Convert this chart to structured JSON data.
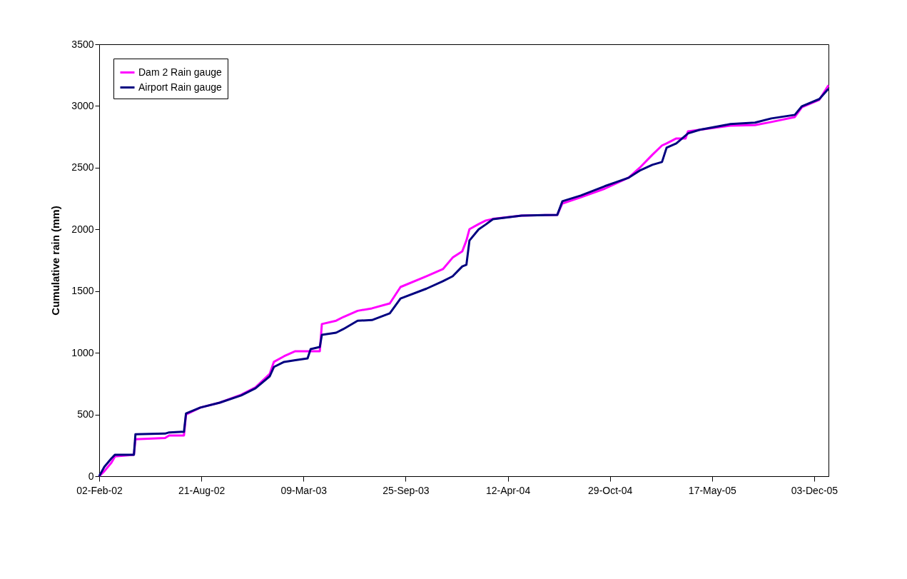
{
  "chart_data": {
    "type": "line",
    "ylabel": "Cumulative rain (mm)",
    "x": [
      "2002-02-02",
      "2002-02-12",
      "2002-02-26",
      "2002-03-05",
      "2002-04-11",
      "2002-04-14",
      "2002-06-11",
      "2002-06-19",
      "2002-07-18",
      "2002-07-22",
      "2002-08-19",
      "2002-09-26",
      "2002-11-07",
      "2002-12-05",
      "2003-01-02",
      "2003-01-10",
      "2003-01-30",
      "2003-02-21",
      "2003-03-17",
      "2003-03-23",
      "2003-04-10",
      "2003-04-14",
      "2003-05-12",
      "2003-05-26",
      "2003-06-23",
      "2003-07-21",
      "2003-08-25",
      "2003-09-15",
      "2003-11-05",
      "2003-12-07",
      "2003-12-26",
      "2004-01-14",
      "2004-01-22",
      "2004-01-28",
      "2004-02-15",
      "2004-02-29",
      "2004-03-14",
      "2004-05-09",
      "2004-07-18",
      "2004-07-28",
      "2004-09-02",
      "2004-10-19",
      "2004-12-05",
      "2004-12-28",
      "2005-01-20",
      "2005-02-08",
      "2005-02-17",
      "2005-03-08",
      "2005-03-26",
      "2005-03-31",
      "2005-04-23",
      "2005-06-22",
      "2005-08-09",
      "2005-09-10",
      "2005-10-26",
      "2005-11-09",
      "2005-12-13",
      "2005-12-31"
    ],
    "series": [
      {
        "name": "Dam 2 Rain gauge",
        "color": "#ff00ff",
        "values": [
          0,
          40,
          110,
          160,
          174,
          300,
          310,
          330,
          330,
          500,
          556,
          596,
          660,
          720,
          830,
          926,
          972,
          1013,
          1013,
          1013,
          1013,
          1233,
          1260,
          1290,
          1340,
          1360,
          1400,
          1533,
          1620,
          1678,
          1771,
          1823,
          1910,
          2002,
          2043,
          2072,
          2085,
          2112,
          2118,
          2210,
          2260,
          2330,
          2420,
          2506,
          2604,
          2680,
          2697,
          2737,
          2737,
          2795,
          2807,
          2840,
          2845,
          2870,
          2910,
          2990,
          3050,
          3168
        ]
      },
      {
        "name": "Airport Rain gauge",
        "color": "#000080",
        "values": [
          0,
          75,
          145,
          174,
          174,
          340,
          345,
          355,
          360,
          509,
          556,
          596,
          654,
          712,
          810,
          885,
          926,
          940,
          955,
          1030,
          1047,
          1146,
          1163,
          1192,
          1260,
          1265,
          1320,
          1440,
          1520,
          1580,
          1620,
          1700,
          1713,
          1910,
          2000,
          2040,
          2083,
          2112,
          2118,
          2228,
          2274,
          2350,
          2419,
          2480,
          2523,
          2546,
          2662,
          2697,
          2760,
          2778,
          2807,
          2853,
          2865,
          2899,
          2928,
          2998,
          3056,
          3140
        ]
      }
    ],
    "xlim": [
      "2002-02-02",
      "2005-12-31"
    ],
    "xticks": [
      {
        "value": "2002-02-02",
        "label": "02-Feb-02"
      },
      {
        "value": "2002-08-21",
        "label": "21-Aug-02"
      },
      {
        "value": "2003-03-09",
        "label": "09-Mar-03"
      },
      {
        "value": "2003-09-25",
        "label": "25-Sep-03"
      },
      {
        "value": "2004-04-12",
        "label": "12-Apr-04"
      },
      {
        "value": "2004-10-29",
        "label": "29-Oct-04"
      },
      {
        "value": "2005-05-17",
        "label": "17-May-05"
      },
      {
        "value": "2005-12-03",
        "label": "03-Dec-05"
      }
    ],
    "ylim": [
      0,
      3500
    ],
    "yticks": [
      0,
      500,
      1000,
      1500,
      2000,
      2500,
      3000,
      3500
    ],
    "grid": false,
    "legend": "top left",
    "marker": "none",
    "line_style": "solid"
  }
}
